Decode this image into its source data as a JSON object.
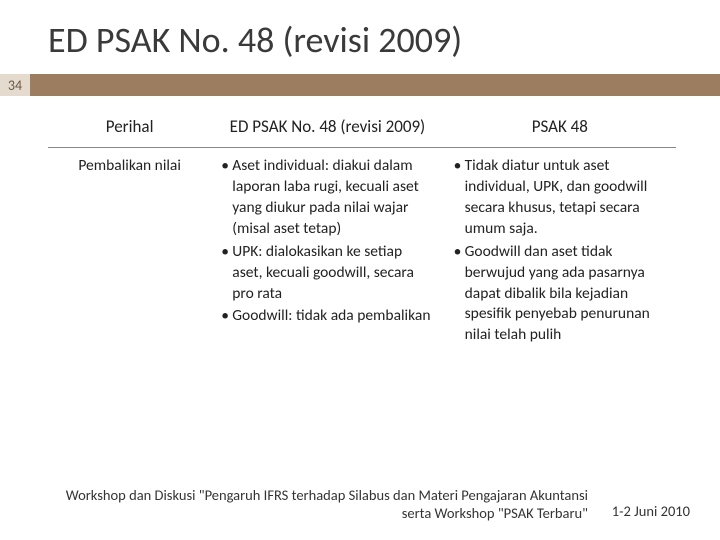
{
  "title": "ED PSAK No. 48 (revisi 2009)",
  "page_number": "34",
  "table": {
    "columns": [
      "Perihal",
      "ED PSAK No. 48 (revisi 2009)",
      "PSAK 48"
    ],
    "row_label": "Pembalikan nilai",
    "col2_items": [
      "Aset individual: diakui dalam laporan laba rugi, kecuali aset yang diukur pada nilai wajar (misal aset tetap)",
      "UPK: dialokasikan ke setiap aset, kecuali goodwill, secara pro rata",
      "Goodwill: tidak ada pembalikan"
    ],
    "col3_items": [
      "Tidak diatur untuk aset individual, UPK, dan goodwill secara khusus, tetapi secara umum saja.",
      "Goodwill dan aset tidak berwujud yang ada pasarnya dapat dibalik bila kejadian spesifik penyebab penurunan nilai telah pulih"
    ]
  },
  "footer": {
    "left": "Workshop dan Diskusi \"Pengaruh IFRS terhadap Silabus dan Materi Pengajaran Akuntansi serta Workshop \"PSAK Terbaru\"",
    "right": "1-2 Juni 2010"
  },
  "colors": {
    "band": "#9d7d5f",
    "badge_bg": "#e4dace"
  }
}
